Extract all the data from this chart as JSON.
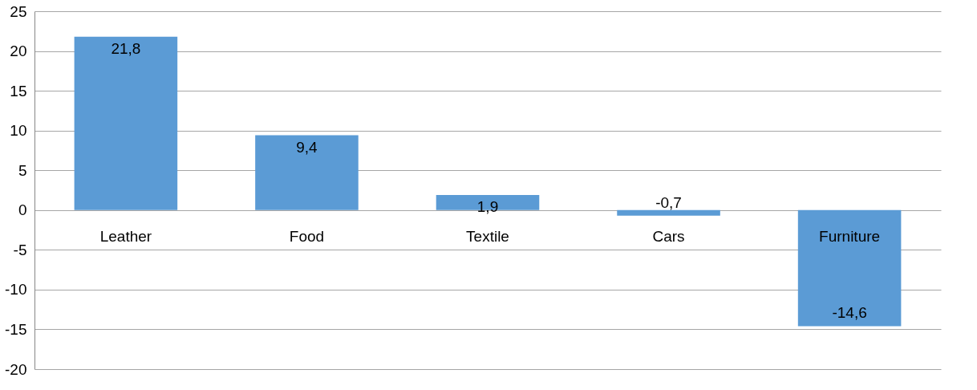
{
  "chart_data": {
    "type": "bar",
    "categories": [
      "Leather",
      "Food",
      "Textile",
      "Cars",
      "Furniture"
    ],
    "values": [
      21.8,
      9.4,
      1.9,
      -0.7,
      -14.6
    ],
    "value_labels": [
      "21,8",
      "9,4",
      "1,9",
      "-0,7",
      "-14,6"
    ],
    "color": "#5b9bd5",
    "ylim": [
      -20,
      25
    ],
    "yticks": [
      -20,
      -15,
      -10,
      -5,
      0,
      5,
      10,
      15,
      20,
      25
    ],
    "grid": "y"
  }
}
